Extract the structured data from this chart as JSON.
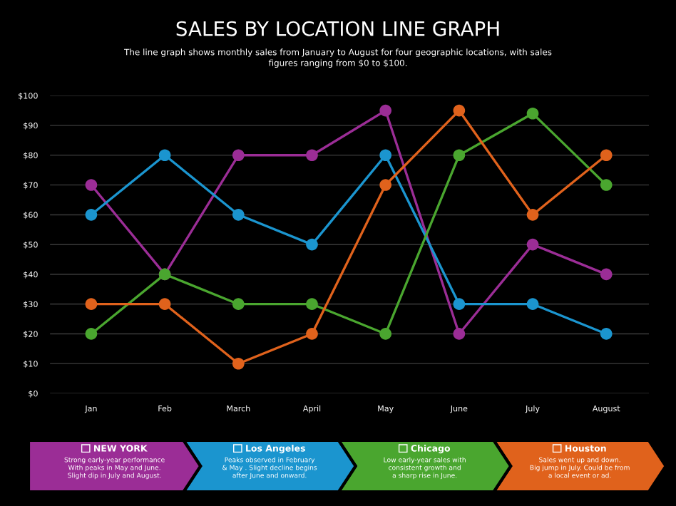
{
  "chart_data": {
    "type": "line",
    "title": "SALES BY LOCATION LINE GRAPH",
    "subtitle": "The line graph shows monthly sales from January to August for four geographic locations, with sales\nfigures ranging from $0 to $100.",
    "categories": [
      "Jan",
      "Feb",
      "March",
      "April",
      "May",
      "June",
      "July",
      "August"
    ],
    "series": [
      {
        "name": "NEW YORK",
        "color": "#9b2d96",
        "values": [
          70,
          40,
          80,
          80,
          95,
          20,
          50,
          40
        ]
      },
      {
        "name": "Los Angeles",
        "color": "#1b95cf",
        "values": [
          60,
          80,
          60,
          50,
          80,
          30,
          30,
          20
        ]
      },
      {
        "name": "Chicago",
        "color": "#4aa62f",
        "values": [
          20,
          40,
          30,
          30,
          20,
          80,
          94,
          70
        ]
      },
      {
        "name": "Houston",
        "color": "#e0621c",
        "values": [
          30,
          30,
          10,
          20,
          70,
          95,
          60,
          80
        ]
      }
    ],
    "annotations": [
      "Strong early-year performance\nWith peaks in May and June.\nSlight dip in July and August.",
      "Peaks observed in February\n& May . Slight decline begins\nafter June and onward.",
      "Low early-year sales with\nconsistent growth and\na sharp rise in June.",
      "Sales went up and down.\nBig jump in July. Could be from\na local event or ad."
    ],
    "ylim": [
      0,
      100
    ],
    "yticks": [
      {
        "value": 0,
        "label": "$0"
      },
      {
        "value": 10,
        "label": "$10"
      },
      {
        "value": 20,
        "label": "$20"
      },
      {
        "value": 30,
        "label": "$30"
      },
      {
        "value": 40,
        "label": "$40"
      },
      {
        "value": 50,
        "label": "$50"
      },
      {
        "value": 60,
        "label": "$60"
      },
      {
        "value": 70,
        "label": "$70"
      },
      {
        "value": 80,
        "label": "$80"
      },
      {
        "value": 90,
        "label": "$90"
      },
      {
        "value": 100,
        "label": "$100"
      }
    ],
    "grid": "y",
    "legend": "bottom",
    "marker": "circle",
    "line_style": "solid"
  }
}
